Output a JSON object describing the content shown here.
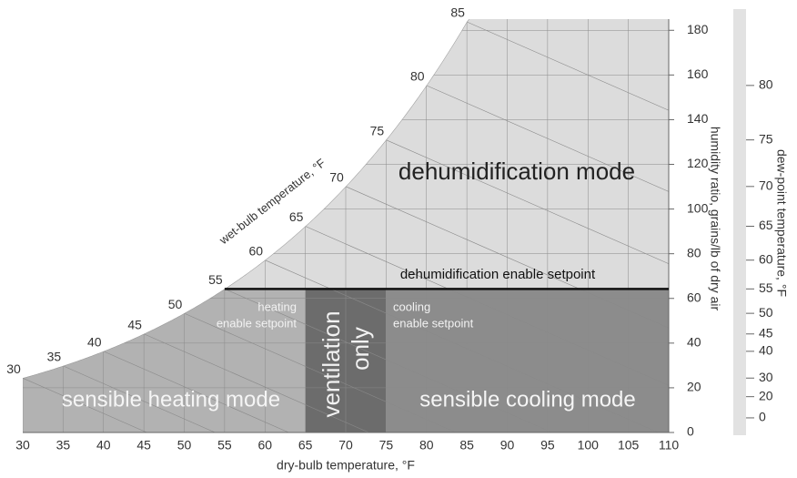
{
  "chart_data": {
    "type": "psychrometric",
    "xlabel": "dry-bulb temperature, °F",
    "ylabel": "humidity ratio, grains/lb of dry air",
    "y2label": "dew-point temperature, °F",
    "wetbulb_label": "wet-bulb temperature, °F",
    "xlim": [
      30,
      110
    ],
    "xticks": [
      30,
      35,
      40,
      45,
      50,
      55,
      60,
      65,
      70,
      75,
      80,
      85,
      90,
      95,
      100,
      105,
      110
    ],
    "ylim": [
      0,
      185
    ],
    "yticks": [
      0,
      20,
      40,
      60,
      80,
      100,
      120,
      140,
      160,
      180
    ],
    "y2ticks": [
      0,
      20,
      30,
      40,
      45,
      50,
      55,
      60,
      65,
      70,
      75,
      80
    ],
    "wetbulb_ticks": [
      30,
      35,
      40,
      45,
      50,
      55,
      60,
      65,
      70,
      75,
      80,
      85
    ],
    "regions": {
      "dehumidification": "dehumidification mode",
      "dehumidification_setpoint": "dehumidification enable setpoint",
      "heating_setpoint": [
        "heating",
        "enable setpoint"
      ],
      "cooling_setpoint": [
        "cooling",
        "enable setpoint"
      ],
      "ventilation": [
        "ventilation",
        "only"
      ],
      "heating": "sensible heating mode",
      "cooling": "sensible cooling mode"
    }
  }
}
